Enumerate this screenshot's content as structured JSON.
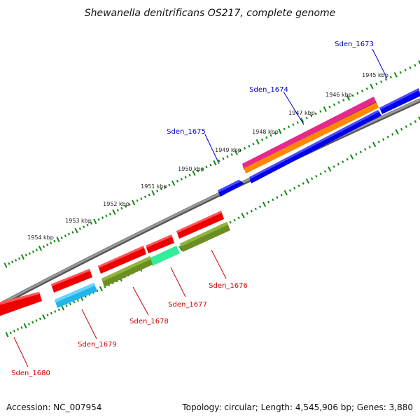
{
  "title": "Shewanella denitrificans OS217, complete genome",
  "footer": {
    "accession": "Accession: NC_007954",
    "stats": "Topology: circular; Length: 4,545,906 bp; Genes: 3,880"
  },
  "kbp_ticks": [
    "1945 kbp",
    "1946 kbp",
    "1947 kbp",
    "1948 kbp",
    "1949 kbp",
    "1950 kbp",
    "1951 kbp",
    "1952 kbp",
    "1953 kbp",
    "1954 kbp"
  ],
  "genes_forward": [
    {
      "name": "Sden_1673",
      "color": "#0000dd"
    },
    {
      "name": "Sden_1674",
      "color": "#0000dd"
    },
    {
      "name": "Sden_1675",
      "color": "#0000dd"
    }
  ],
  "genes_reverse": [
    {
      "name": "Sden_1676",
      "color": "#cc0000"
    },
    {
      "name": "Sden_1677",
      "color": "#cc0000"
    },
    {
      "name": "Sden_1678",
      "color": "#cc0000"
    },
    {
      "name": "Sden_1679",
      "color": "#cc0000"
    },
    {
      "name": "Sden_1680",
      "color": "#cc0000"
    }
  ],
  "colors": {
    "backbone": "#808080",
    "tick_green": "#118811",
    "forward_gene": "#0000ee",
    "reverse_gene": "#ee0000",
    "cog_pink": "#e8288c",
    "cog_orange": "#ff8800",
    "cog_olive": "#6b8e23",
    "cog_cyan": "#22b5e8",
    "cog_mint": "#33ee99"
  }
}
